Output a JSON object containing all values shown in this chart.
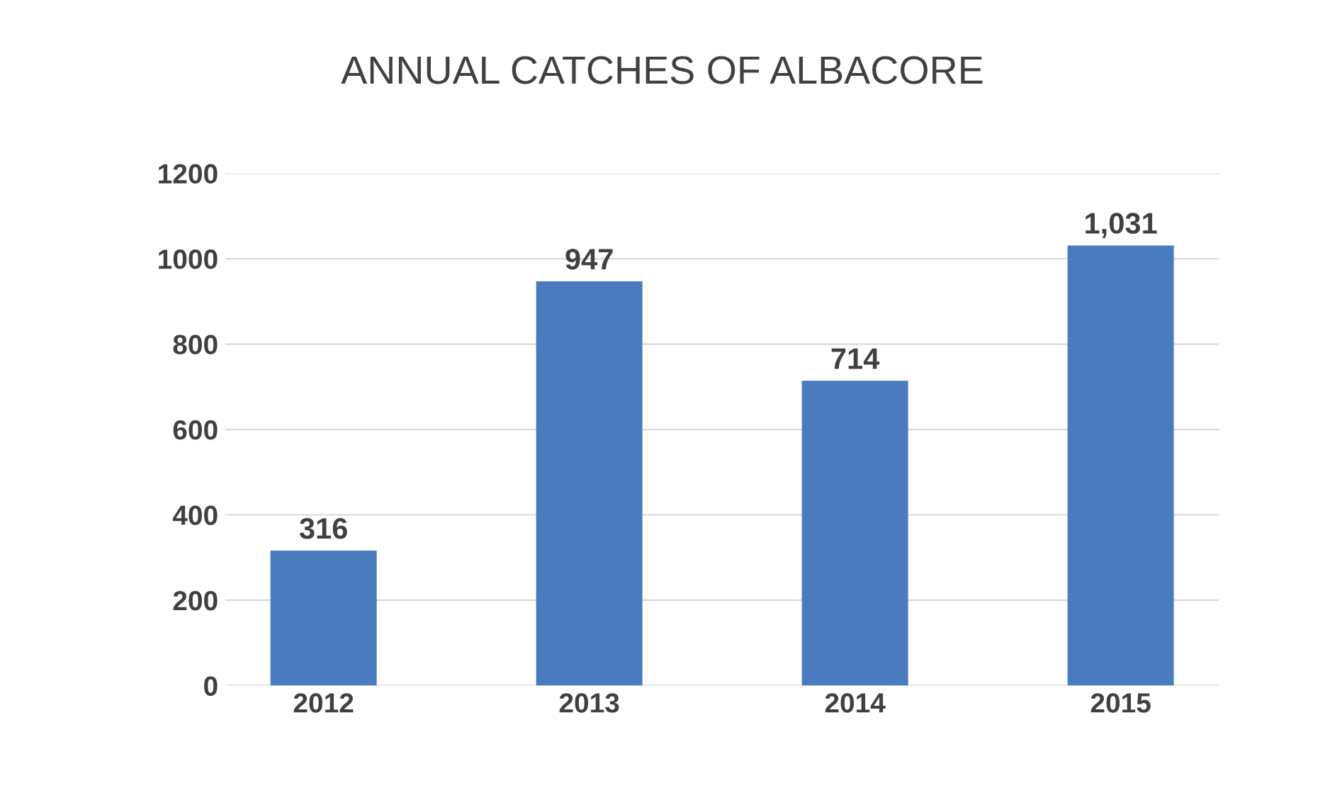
{
  "chart_data": {
    "type": "bar",
    "title": "ANNUAL CATCHES OF ALBACORE",
    "categories": [
      "2012",
      "2013",
      "2014",
      "2015"
    ],
    "values": [
      316,
      947,
      714,
      1031
    ],
    "value_labels": [
      "316",
      "947",
      "714",
      "1,031"
    ],
    "color": "#4a7bbf",
    "ylim": [
      0,
      1200
    ],
    "yticks": [
      0,
      200,
      400,
      600,
      800,
      1000,
      1200
    ],
    "grid": "y"
  }
}
